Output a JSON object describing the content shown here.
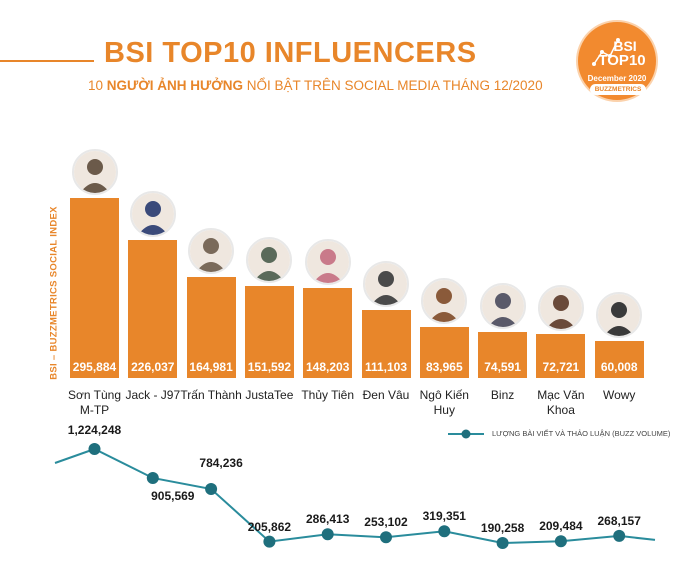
{
  "header": {
    "title": "BSI TOP10 INFLUENCERS",
    "subtitle_prefix": "10 ",
    "subtitle_bold": "NGƯỜI ẢNH HƯỞNG",
    "subtitle_rest": " NỔI BẬT TRÊN SOCIAL MEDIA THÁNG 12/2020"
  },
  "badge": {
    "line1": "BSI",
    "line2": "TOP10",
    "month": "December 2020",
    "brand": "BUZZMETRICS"
  },
  "colors": {
    "accent": "#e8862a",
    "line": "#2a8c9c",
    "line_dark": "#1f6f7d"
  },
  "chart_data": [
    {
      "type": "bar",
      "title": "BSI TOP10 INFLUENCERS",
      "ylabel": "BSI – BUZZMETRICS SOCIAL INDEX",
      "categories": [
        "Sơn Tùng\nM-TP",
        "Jack - J97",
        "Trấn Thành",
        "JustaTee",
        "Thủy Tiên",
        "Đen Vâu",
        "Ngô Kiến Huy",
        "Binz",
        "Mạc Văn Khoa",
        "Wowy"
      ],
      "values": [
        295884,
        226037,
        164981,
        151592,
        148203,
        111103,
        83965,
        74591,
        72721,
        60008
      ],
      "value_labels": [
        "295,884",
        "226,037",
        "164,981",
        "151,592",
        "148,203",
        "111,103",
        "83,965",
        "74,591",
        "72,721",
        "60,008"
      ],
      "ylim": [
        0,
        300000
      ]
    },
    {
      "type": "line",
      "legend": "LƯỢNG BÀI VIẾT VÀ THẢO LUẬN (BUZZ VOLUME)",
      "values": [
        1224248,
        905569,
        784236,
        205862,
        286413,
        253102,
        319351,
        190258,
        209484,
        268157
      ],
      "value_labels": [
        "1,224,248",
        "905,569",
        "784,236",
        "205,862",
        "286,413",
        "253,102",
        "319,351",
        "190,258",
        "209,484",
        "268,157"
      ],
      "ylim": [
        0,
        1300000
      ]
    }
  ]
}
